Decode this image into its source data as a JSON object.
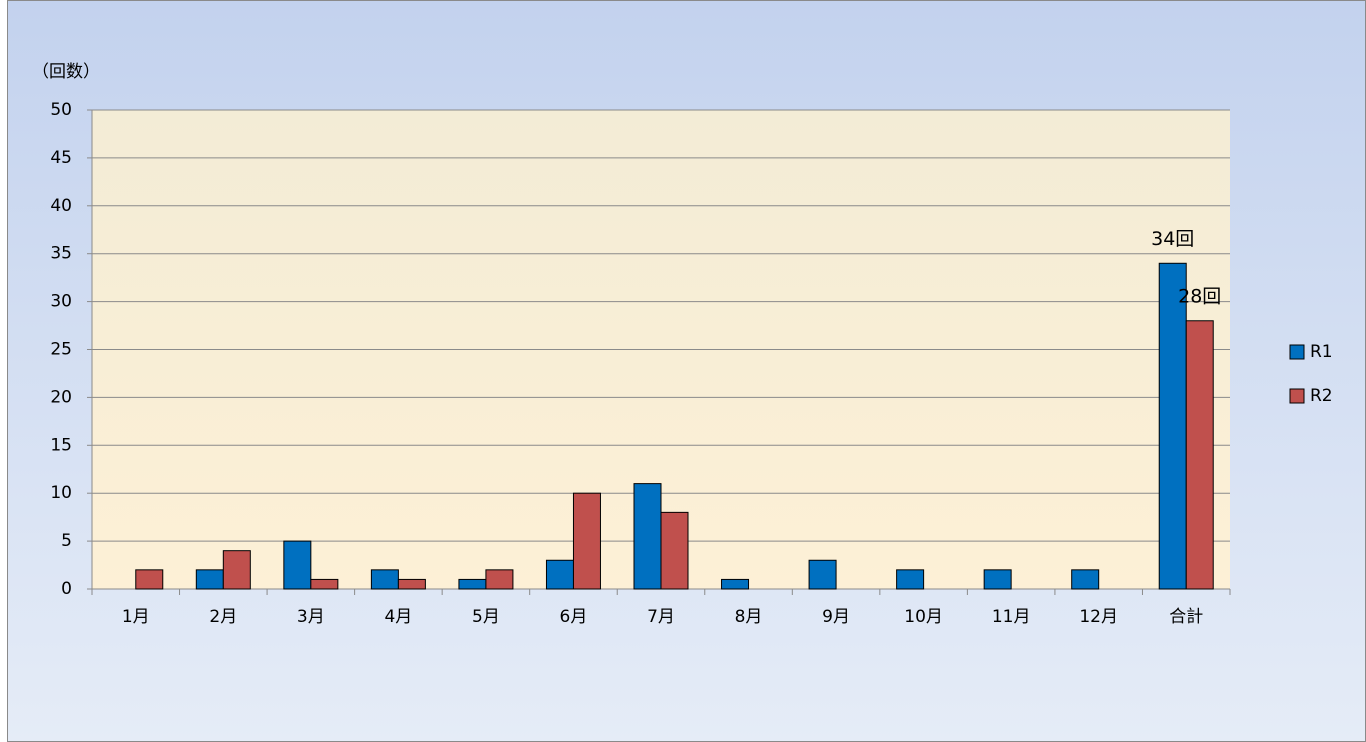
{
  "chart_data": {
    "type": "bar",
    "y_axis_label": "（回数）",
    "categories": [
      "1月",
      "2月",
      "3月",
      "4月",
      "5月",
      "6月",
      "7月",
      "8月",
      "9月",
      "10月",
      "11月",
      "12月",
      "合計"
    ],
    "series": [
      {
        "name": "R1",
        "color": "#0070c0",
        "values": [
          0,
          2,
          5,
          2,
          1,
          3,
          11,
          1,
          3,
          2,
          2,
          2,
          34
        ],
        "value_labels": [
          null,
          null,
          null,
          null,
          null,
          null,
          null,
          null,
          null,
          null,
          null,
          null,
          "34回"
        ]
      },
      {
        "name": "R2",
        "color": "#c0504d",
        "values": [
          2,
          4,
          1,
          1,
          2,
          10,
          8,
          0,
          0,
          0,
          0,
          0,
          28
        ],
        "value_labels": [
          null,
          null,
          null,
          null,
          null,
          null,
          null,
          null,
          null,
          null,
          null,
          null,
          "28回"
        ]
      }
    ],
    "ylim": [
      0,
      50
    ],
    "yticks": [
      0,
      5,
      10,
      15,
      20,
      25,
      30,
      35,
      40,
      45,
      50
    ],
    "grid": true,
    "legend": "right"
  }
}
